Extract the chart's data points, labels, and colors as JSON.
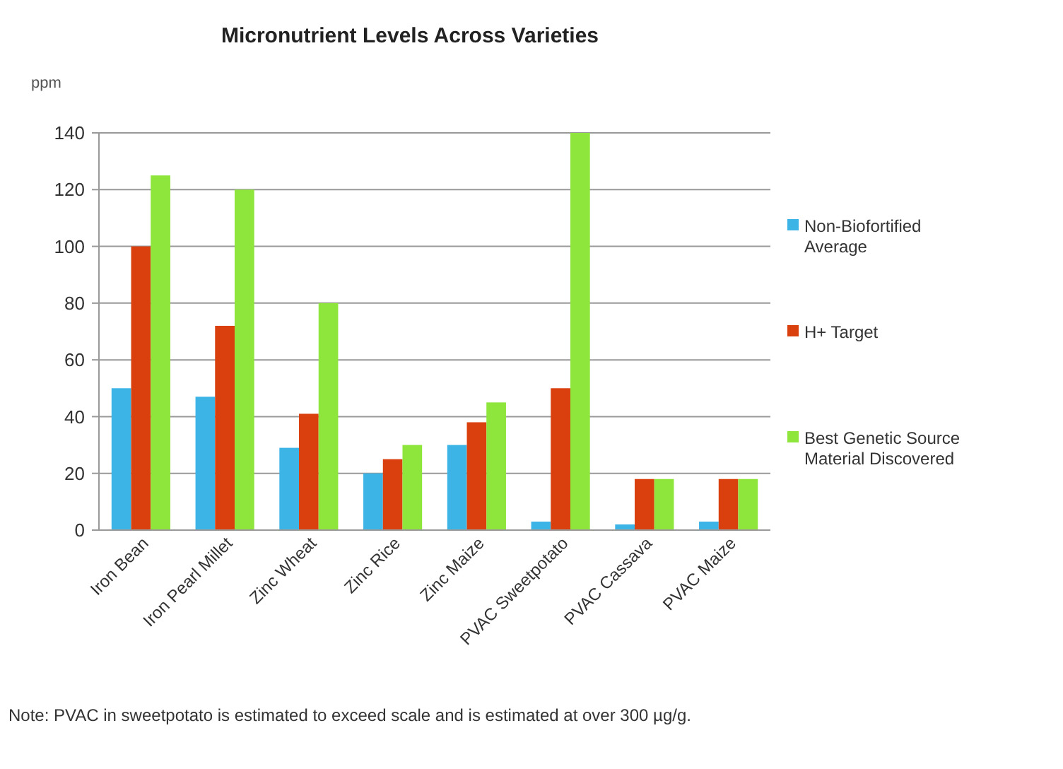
{
  "chart_data": {
    "type": "bar",
    "title": "Micronutrient Levels Across Varieties",
    "ylabel": "ppm",
    "categories": [
      "Iron Bean",
      "Iron Pearl Millet",
      "Zinc Wheat",
      "Zinc Rice",
      "Zinc Maize",
      "PVAC Sweetpotato",
      "PVAC Cassava",
      "PVAC Maize"
    ],
    "series": [
      {
        "name": "Non-Biofortified Average",
        "color": "#3cb4e6",
        "values": [
          50,
          47,
          29,
          20,
          30,
          3,
          2,
          3
        ]
      },
      {
        "name": "H+ Target",
        "color": "#d9400e",
        "values": [
          100,
          72,
          41,
          25,
          38,
          50,
          18,
          18
        ]
      },
      {
        "name": "Best Genetic Source Material Discovered",
        "color": "#8ee63c",
        "values": [
          125,
          120,
          80,
          30,
          45,
          140,
          18,
          18
        ]
      }
    ],
    "ylim": [
      0,
      140
    ],
    "yticks": [
      0,
      20,
      40,
      60,
      80,
      100,
      120,
      140
    ],
    "grid": "y",
    "legend": "right",
    "annotations": [
      "Note: PVAC in sweetpotato is estimated to exceed scale and is estimated at over 300 µg/g."
    ]
  }
}
